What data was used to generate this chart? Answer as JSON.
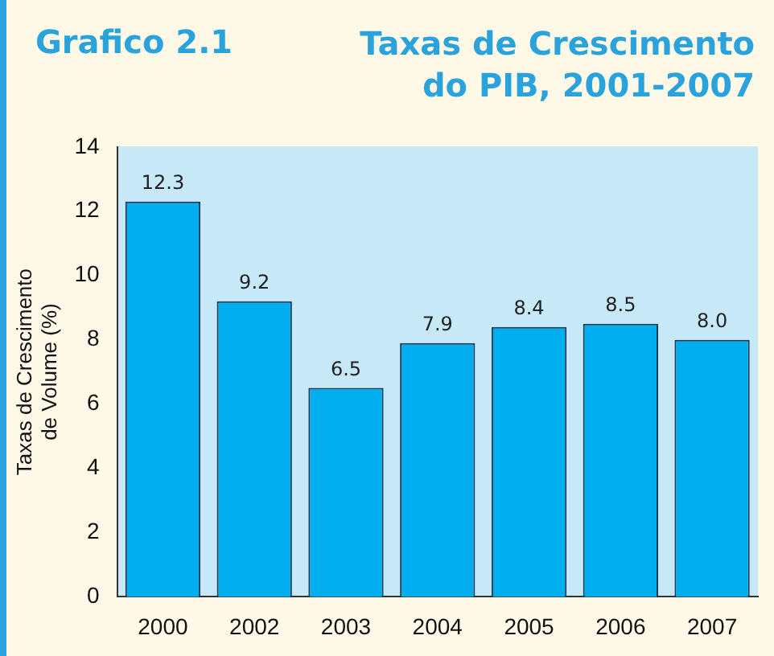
{
  "chart_data": {
    "type": "bar",
    "title": "Taxas de Crescimento do PIB, 2001-2007",
    "annotations": [
      "Grafico 2.1"
    ],
    "ylabel": "Taxas de Crescimento de Volume (%)",
    "categories": [
      "2000",
      "2002",
      "2003",
      "2004",
      "2005",
      "2006",
      "2007"
    ],
    "values": [
      12.3,
      9.2,
      6.5,
      7.9,
      8.4,
      8.5,
      8.0
    ],
    "value_labels": [
      "12.3",
      "9.2",
      "6.5",
      "7.9",
      "8.4",
      "8.5",
      "8.0"
    ],
    "color": "#00aeef",
    "ylim": [
      0,
      14
    ],
    "yticks": [
      0,
      2,
      4,
      6,
      8,
      10,
      12,
      14
    ],
    "grid": false,
    "legend": false
  }
}
